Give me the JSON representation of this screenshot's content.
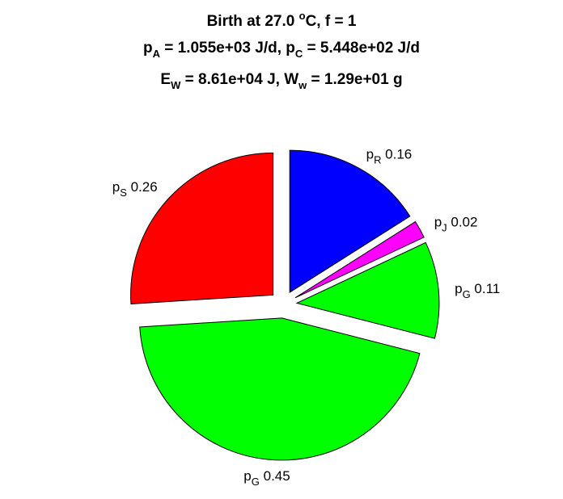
{
  "title": {
    "line1": {
      "prefix": "Birth at 27.0 ",
      "sup": "o",
      "suffix": "C, f = 1"
    },
    "line2": {
      "a_sym": "p",
      "a_sub": "A",
      "a_val": " = 1.055e+03 J/d, ",
      "c_sym": "p",
      "c_sub": "C",
      "c_val": " = 5.448e+02 J/d"
    },
    "line3": {
      "e_sym": "E",
      "e_sub": "W",
      "e_val": " = 8.61e+04 J, ",
      "w_sym": "W",
      "w_sub": "w",
      "w_val": " = 1.29e+01 g"
    }
  },
  "chart_data": {
    "type": "pie",
    "start_angle_deg": 90,
    "direction": "clockwise",
    "exploded": true,
    "slices": [
      {
        "symbol": "p",
        "subscript": "R",
        "value": 0.16,
        "label": " 0.16",
        "color": "#0000ff"
      },
      {
        "symbol": "p",
        "subscript": "J",
        "value": 0.02,
        "label": " 0.02",
        "color": "#ff00ff"
      },
      {
        "symbol": "p",
        "subscript": "G",
        "value": 0.11,
        "label": " 0.11",
        "color": "#00ff00"
      },
      {
        "symbol": "p",
        "subscript": "G",
        "value": 0.45,
        "label": " 0.45",
        "color": "#00ff00"
      },
      {
        "symbol": "p",
        "subscript": "S",
        "value": 0.26,
        "label": " 0.26",
        "color": "#ff0000"
      }
    ]
  }
}
